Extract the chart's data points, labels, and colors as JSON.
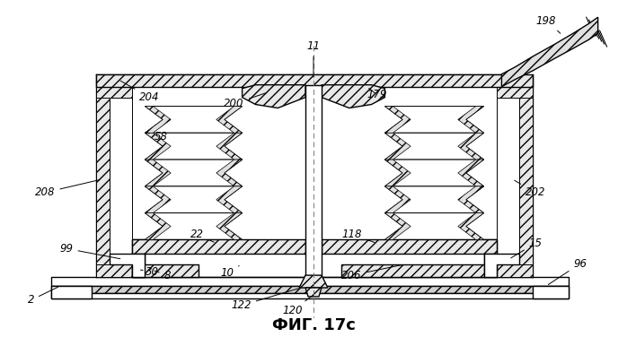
{
  "title": "ФИГ. 17c",
  "title_fontsize": 13,
  "background_color": "#ffffff",
  "line_color": "#000000",
  "fig_width": 6.98,
  "fig_height": 3.76,
  "dpi": 100
}
